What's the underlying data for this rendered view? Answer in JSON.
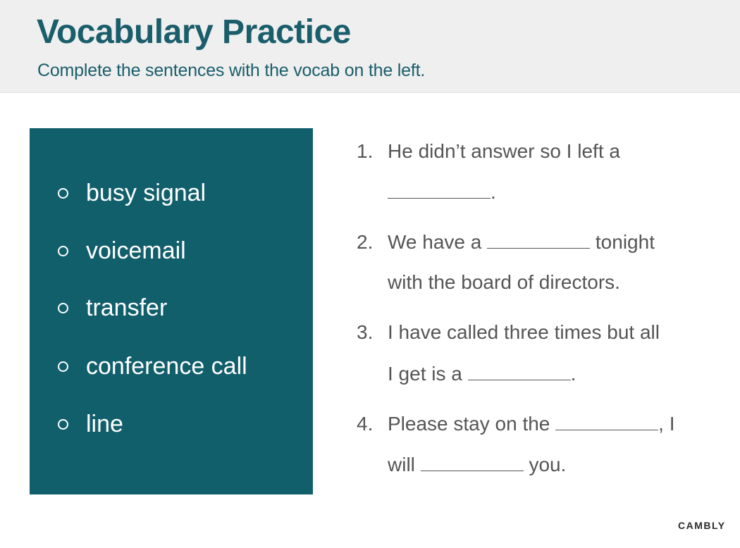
{
  "header": {
    "title": "Vocabulary Practice",
    "subtitle": "Complete the sentences with the vocab on the left."
  },
  "vocab": {
    "items": [
      "busy signal",
      "voicemail",
      "transfer",
      "conference call",
      "line"
    ]
  },
  "questions": [
    {
      "number": "1.",
      "line1": "He didn’t answer so I left a",
      "line2_after": "."
    },
    {
      "number": "2.",
      "line1_before": "We have a",
      "line1_after": "tonight",
      "line2": "with the board of directors."
    },
    {
      "number": "3.",
      "line1": "I have called three times but all",
      "line2_before": "I get is a",
      "line2_after": "."
    },
    {
      "number": "4.",
      "line1_before": "Please stay on the",
      "line1_after": ", I",
      "line2_before": "will",
      "line2_after": "you."
    }
  ],
  "brand": "CAMBLY",
  "colors": {
    "accent": "#1a5e6b",
    "panel": "#125f6c",
    "header_bg": "#efefef"
  }
}
